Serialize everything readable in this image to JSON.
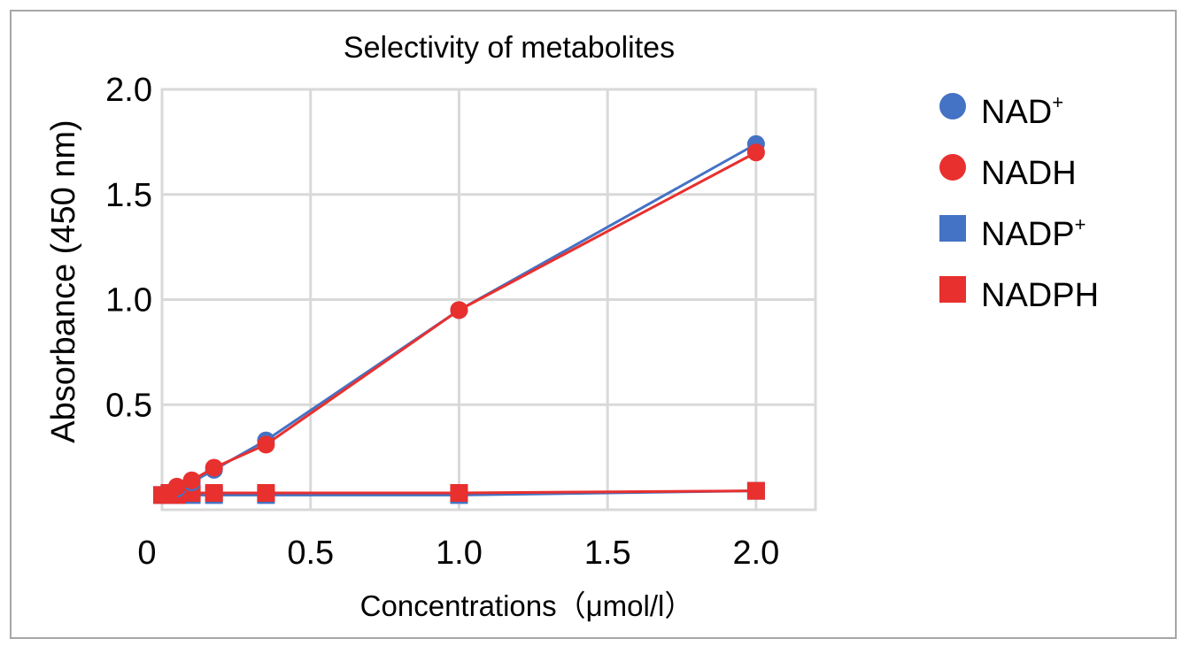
{
  "chart_data": {
    "type": "scatter",
    "title": "Selectivity of metabolites",
    "xlabel": "Concentrations（μmol/l）",
    "ylabel": "Absorbance (450 nm)",
    "xlim": [
      0,
      2.2
    ],
    "ylim": [
      0,
      2.0
    ],
    "x_ticks": [
      "0",
      "0.5",
      "1.0",
      "1.5",
      "2.0"
    ],
    "y_ticks": [
      "0.5",
      "1.0",
      "1.5",
      "2.0"
    ],
    "grid": true,
    "legend_position": "right",
    "series": [
      {
        "name": "NAD",
        "name_sup": "+",
        "marker": "circle",
        "color": "#4472c4",
        "x": [
          0.0,
          0.025,
          0.05,
          0.1,
          0.175,
          0.35,
          1.0,
          2.0
        ],
        "y": [
          0.07,
          0.08,
          0.1,
          0.13,
          0.19,
          0.33,
          0.95,
          1.74
        ]
      },
      {
        "name": "NADH",
        "name_sup": "",
        "marker": "circle",
        "color": "#e8302e",
        "x": [
          0.0,
          0.025,
          0.05,
          0.1,
          0.175,
          0.35,
          1.0,
          2.0
        ],
        "y": [
          0.07,
          0.08,
          0.11,
          0.14,
          0.2,
          0.31,
          0.95,
          1.7
        ]
      },
      {
        "name": "NADP",
        "name_sup": "+",
        "marker": "square",
        "color": "#4472c4",
        "x": [
          0.0,
          0.025,
          0.05,
          0.1,
          0.175,
          0.35,
          1.0,
          2.0
        ],
        "y": [
          0.07,
          0.07,
          0.07,
          0.07,
          0.07,
          0.07,
          0.07,
          0.09
        ]
      },
      {
        "name": "NADPH",
        "name_sup": "",
        "marker": "square",
        "color": "#e8302e",
        "x": [
          0.0,
          0.025,
          0.05,
          0.1,
          0.175,
          0.35,
          1.0,
          2.0
        ],
        "y": [
          0.07,
          0.08,
          0.07,
          0.08,
          0.08,
          0.08,
          0.08,
          0.09
        ]
      }
    ]
  }
}
